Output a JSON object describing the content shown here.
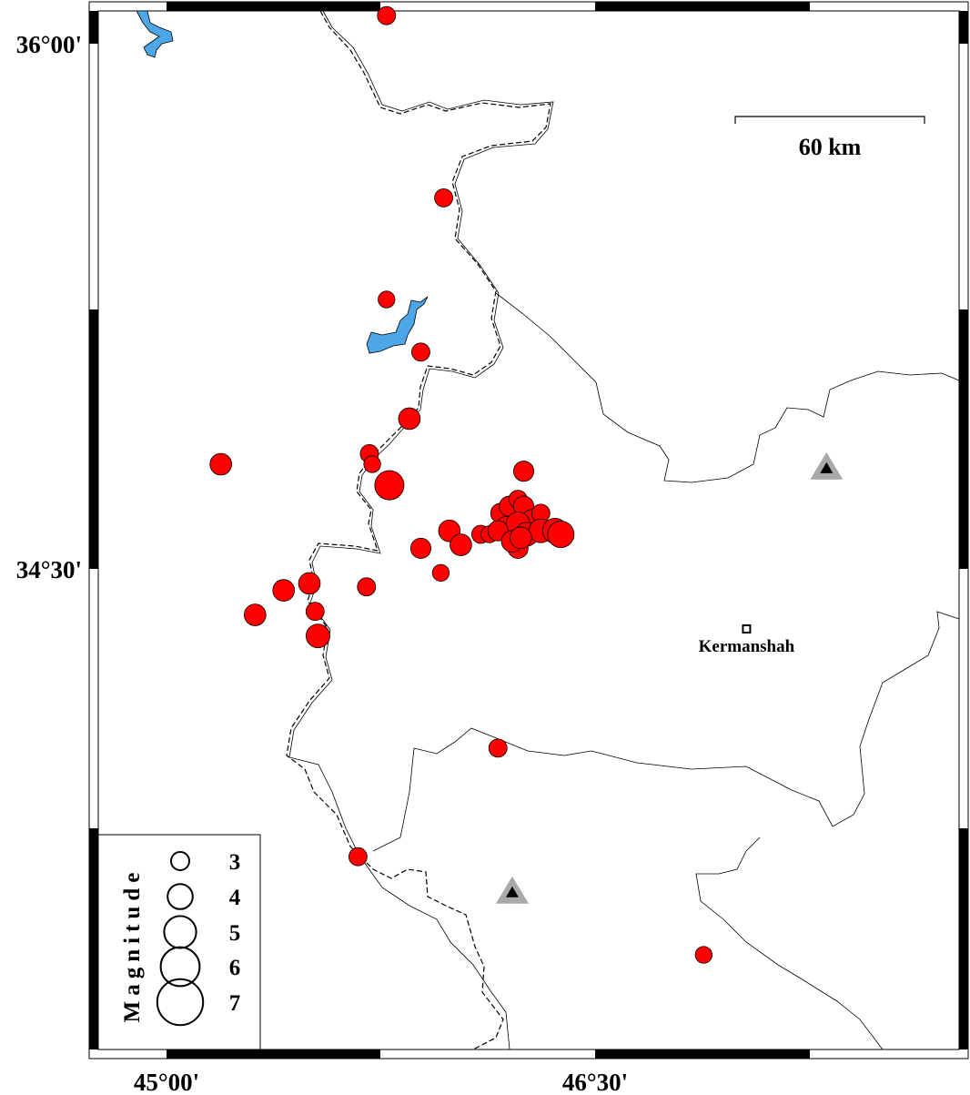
{
  "map": {
    "lat_labels": [
      {
        "text": "36°00'",
        "lat": 36.0
      },
      {
        "text": "34°30'",
        "lat": 34.5
      }
    ],
    "lon_labels": [
      {
        "text": "45°00'",
        "lon": 45.0
      },
      {
        "text": "46°30'",
        "lon": 46.5
      }
    ],
    "scale_bar": {
      "label": "60 km"
    },
    "city": {
      "name": "Kermanshah",
      "lon": 47.03,
      "lat": 34.33
    },
    "stations": [
      {
        "lon": 47.31,
        "lat": 34.79,
        "symbol": "triangle",
        "color": "#a9a9a9"
      },
      {
        "lon": 46.21,
        "lat": 33.58,
        "symbol": "triangle",
        "color": "#a9a9a9"
      }
    ],
    "colors": {
      "earthquake": "#ff0000",
      "water": "#4da6e8",
      "station": "#a9a9a9"
    },
    "earthquakes": [
      {
        "lon": 45.77,
        "lat": 36.08,
        "mag": 3.0
      },
      {
        "lon": 45.97,
        "lat": 35.56,
        "mag": 3.0
      },
      {
        "lon": 45.77,
        "lat": 35.27,
        "mag": 2.8
      },
      {
        "lon": 45.89,
        "lat": 35.12,
        "mag": 3.0
      },
      {
        "lon": 45.85,
        "lat": 34.93,
        "mag": 3.5
      },
      {
        "lon": 45.19,
        "lat": 34.8,
        "mag": 3.5
      },
      {
        "lon": 45.71,
        "lat": 34.83,
        "mag": 3.0
      },
      {
        "lon": 45.72,
        "lat": 34.8,
        "mag": 2.8
      },
      {
        "lon": 45.78,
        "lat": 34.74,
        "mag": 4.6
      },
      {
        "lon": 46.25,
        "lat": 34.78,
        "mag": 3.3
      },
      {
        "lon": 45.99,
        "lat": 34.61,
        "mag": 3.5
      },
      {
        "lon": 46.03,
        "lat": 34.57,
        "mag": 3.5
      },
      {
        "lon": 45.89,
        "lat": 34.56,
        "mag": 3.3
      },
      {
        "lon": 45.96,
        "lat": 34.49,
        "mag": 2.8
      },
      {
        "lon": 46.1,
        "lat": 34.6,
        "mag": 3.0
      },
      {
        "lon": 46.13,
        "lat": 34.6,
        "mag": 2.8
      },
      {
        "lon": 46.17,
        "lat": 34.66,
        "mag": 3.3
      },
      {
        "lon": 46.2,
        "lat": 34.68,
        "mag": 3.3
      },
      {
        "lon": 46.23,
        "lat": 34.7,
        "mag": 3.0
      },
      {
        "lon": 46.25,
        "lat": 34.68,
        "mag": 3.3
      },
      {
        "lon": 46.28,
        "lat": 34.64,
        "mag": 3.5
      },
      {
        "lon": 46.31,
        "lat": 34.66,
        "mag": 3.0
      },
      {
        "lon": 46.19,
        "lat": 34.62,
        "mag": 3.5
      },
      {
        "lon": 46.23,
        "lat": 34.63,
        "mag": 3.8
      },
      {
        "lon": 46.26,
        "lat": 34.6,
        "mag": 3.8
      },
      {
        "lon": 46.31,
        "lat": 34.61,
        "mag": 3.8
      },
      {
        "lon": 46.36,
        "lat": 34.61,
        "mag": 4.0
      },
      {
        "lon": 46.38,
        "lat": 34.6,
        "mag": 4.2
      },
      {
        "lon": 46.23,
        "lat": 34.56,
        "mag": 3.3
      },
      {
        "lon": 46.16,
        "lat": 34.61,
        "mag": 3.3
      },
      {
        "lon": 46.21,
        "lat": 34.58,
        "mag": 3.5
      },
      {
        "lon": 46.24,
        "lat": 34.59,
        "mag": 3.5
      },
      {
        "lon": 45.5,
        "lat": 34.46,
        "mag": 3.5
      },
      {
        "lon": 45.41,
        "lat": 34.44,
        "mag": 3.5
      },
      {
        "lon": 45.7,
        "lat": 34.45,
        "mag": 3.0
      },
      {
        "lon": 45.52,
        "lat": 34.38,
        "mag": 3.0
      },
      {
        "lon": 45.31,
        "lat": 34.37,
        "mag": 3.5
      },
      {
        "lon": 45.53,
        "lat": 34.31,
        "mag": 3.8
      },
      {
        "lon": 46.16,
        "lat": 33.99,
        "mag": 3.0
      },
      {
        "lon": 45.67,
        "lat": 33.68,
        "mag": 3.0
      },
      {
        "lon": 46.88,
        "lat": 33.4,
        "mag": 2.8
      }
    ],
    "legend": {
      "title": "Magnitude",
      "items": [
        {
          "label": "3",
          "mag": 3
        },
        {
          "label": "4",
          "mag": 4
        },
        {
          "label": "5",
          "mag": 5
        },
        {
          "label": "6",
          "mag": 6
        },
        {
          "label": "7",
          "mag": 7
        }
      ]
    }
  }
}
